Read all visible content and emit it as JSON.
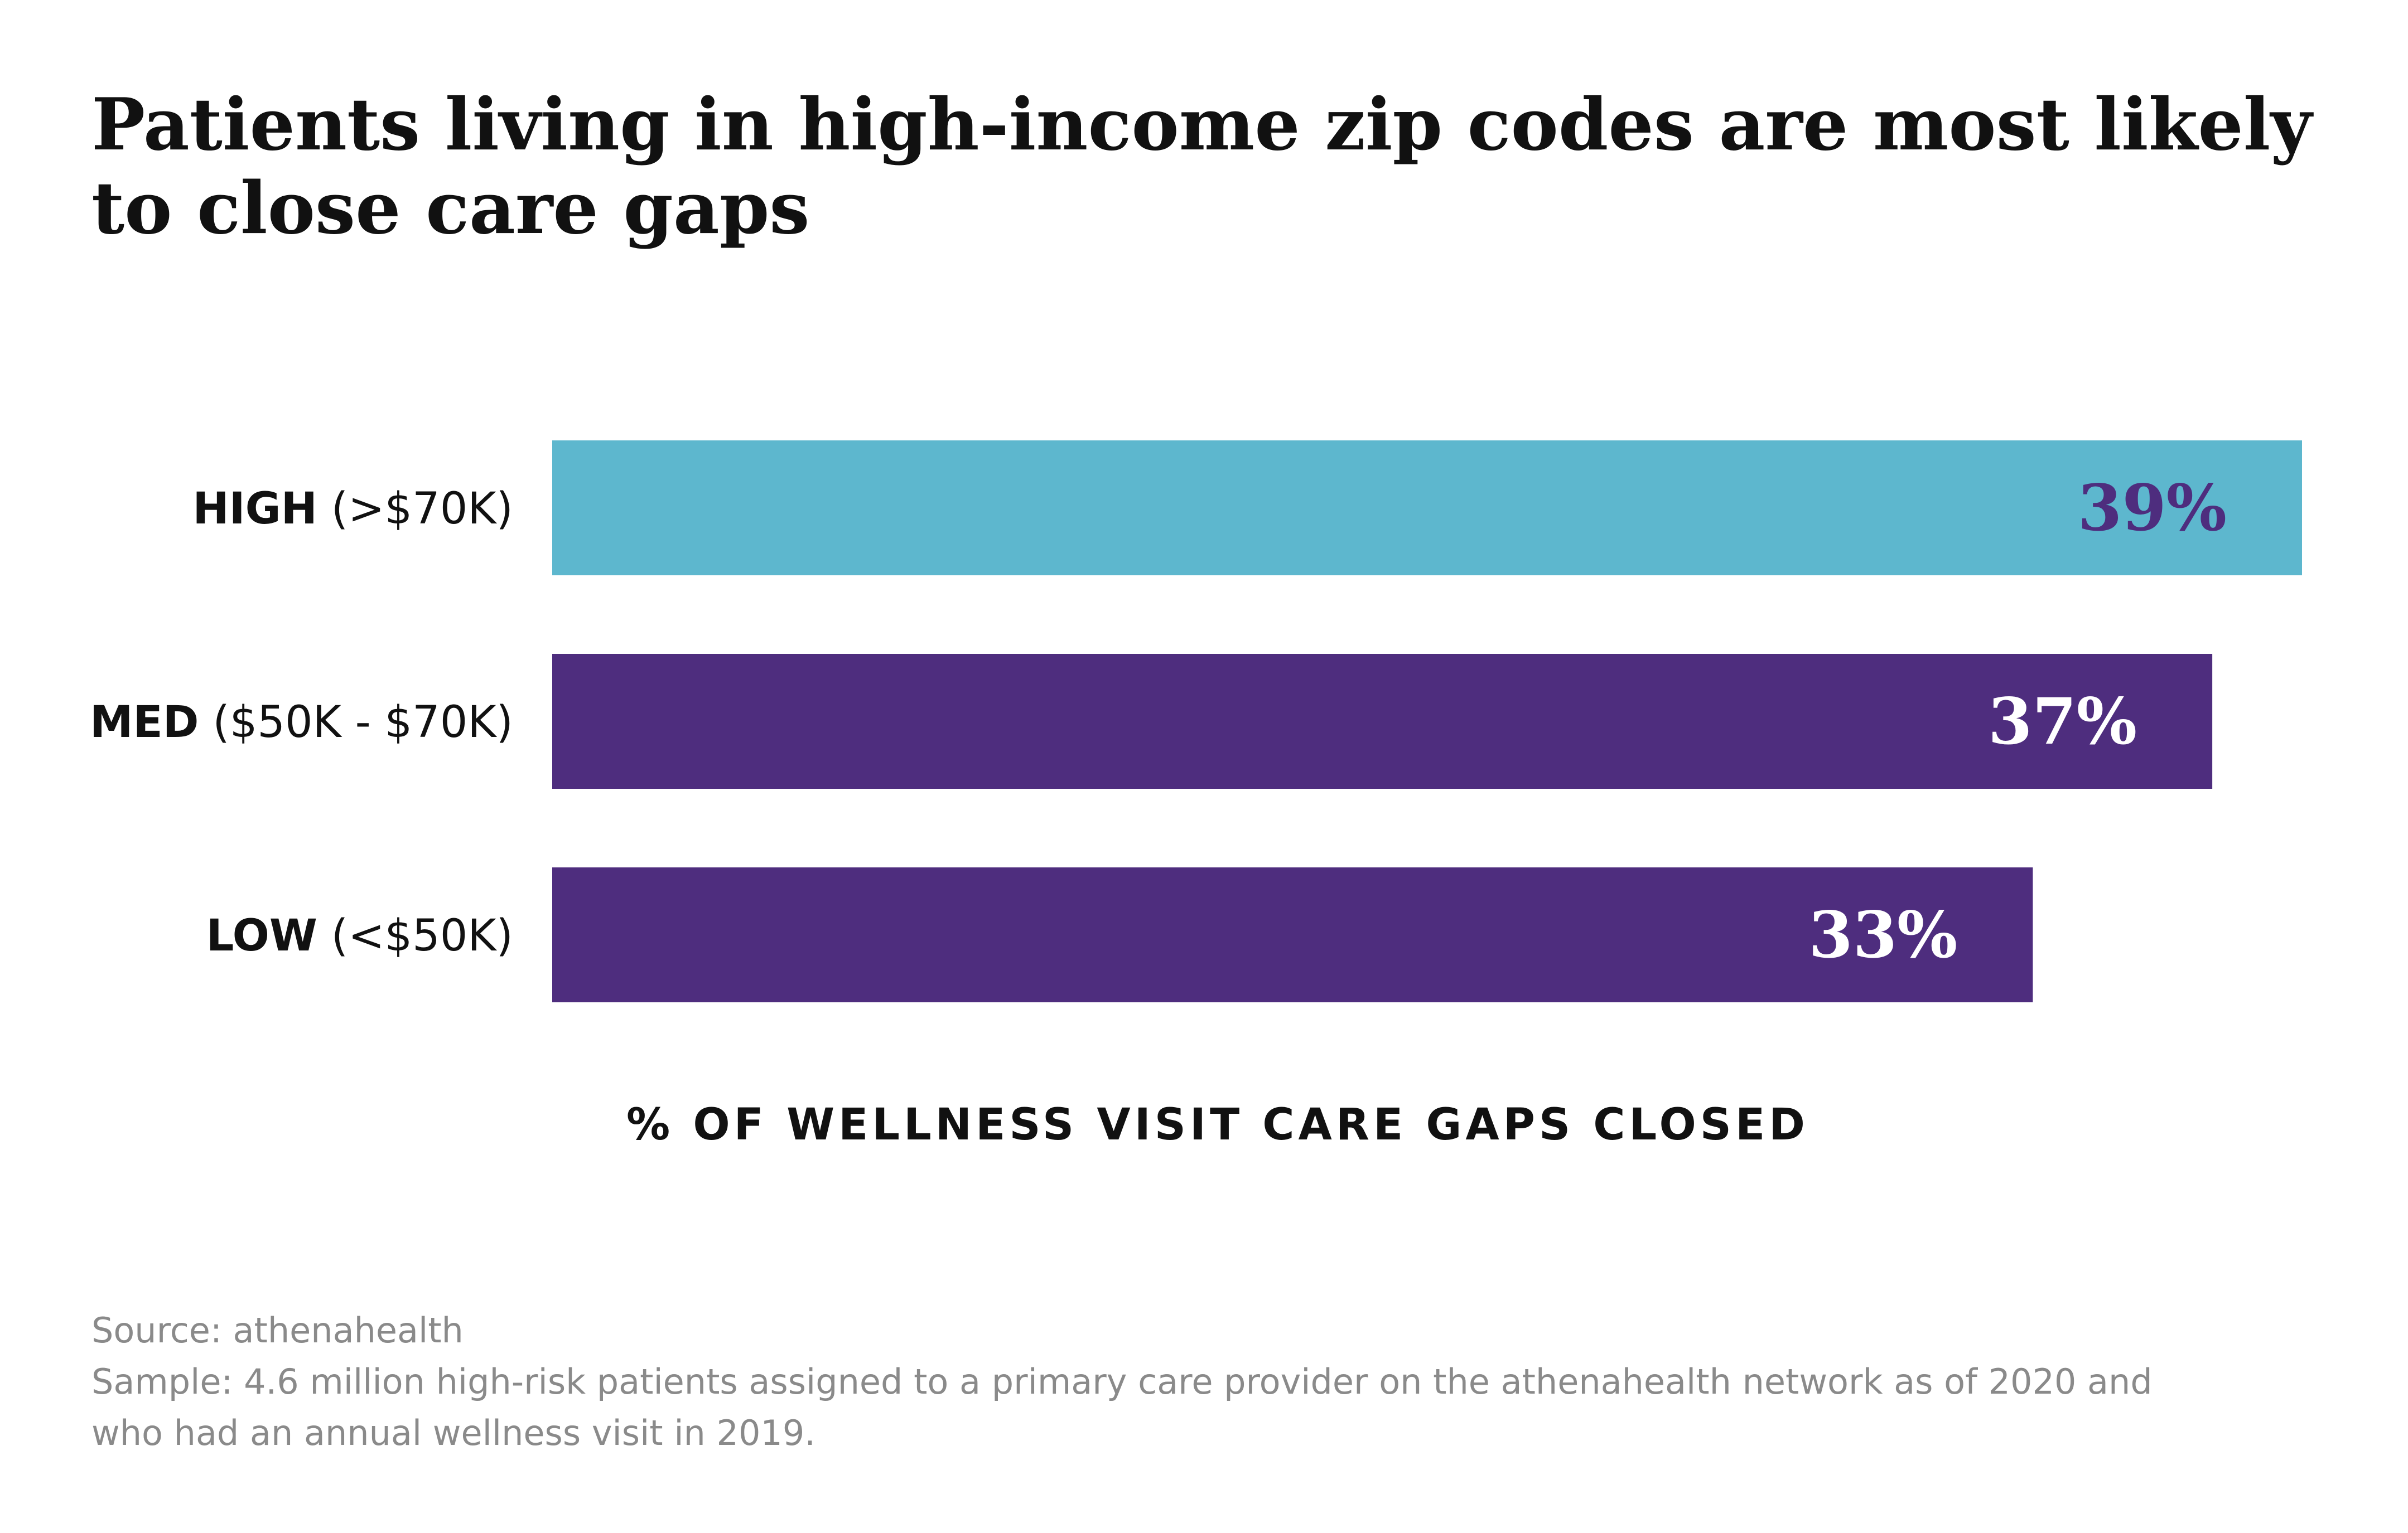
{
  "chart_data": {
    "type": "bar",
    "orientation": "horizontal",
    "title": "Patients living in high-income zip codes are most likely to close care gaps",
    "title_lines": [
      "Patients living in high-income zip codes are most likely",
      "to close care gaps"
    ],
    "xlabel": "% OF WELLNESS VISIT CARE GAPS CLOSED",
    "ylabel": "",
    "grid": false,
    "legend": "none",
    "xlim": [
      0,
      39
    ],
    "categories": [
      {
        "bold": "HIGH",
        "rest": " (>$70K)"
      },
      {
        "bold": "MED",
        "rest": " ($50K - $70K)"
      },
      {
        "bold": "LOW",
        "rest": " (<$50K)"
      }
    ],
    "values": [
      39,
      37,
      33
    ],
    "value_labels": [
      "39%",
      "37%",
      "33%"
    ],
    "bar_colors": [
      "#5DB7CE",
      "#4E2D7E",
      "#4E2D7E"
    ],
    "value_label_colors": [
      "#4E2D7E",
      "#FFFFFF",
      "#FFFFFF"
    ]
  },
  "footnotes": {
    "source": "Source: athenahealth",
    "sample_lines": [
      "Sample: 4.6 million high-risk patients assigned to a primary care provider on the athenahealth network as of 2020 and",
      "who had an annual wellness visit in 2019."
    ]
  }
}
